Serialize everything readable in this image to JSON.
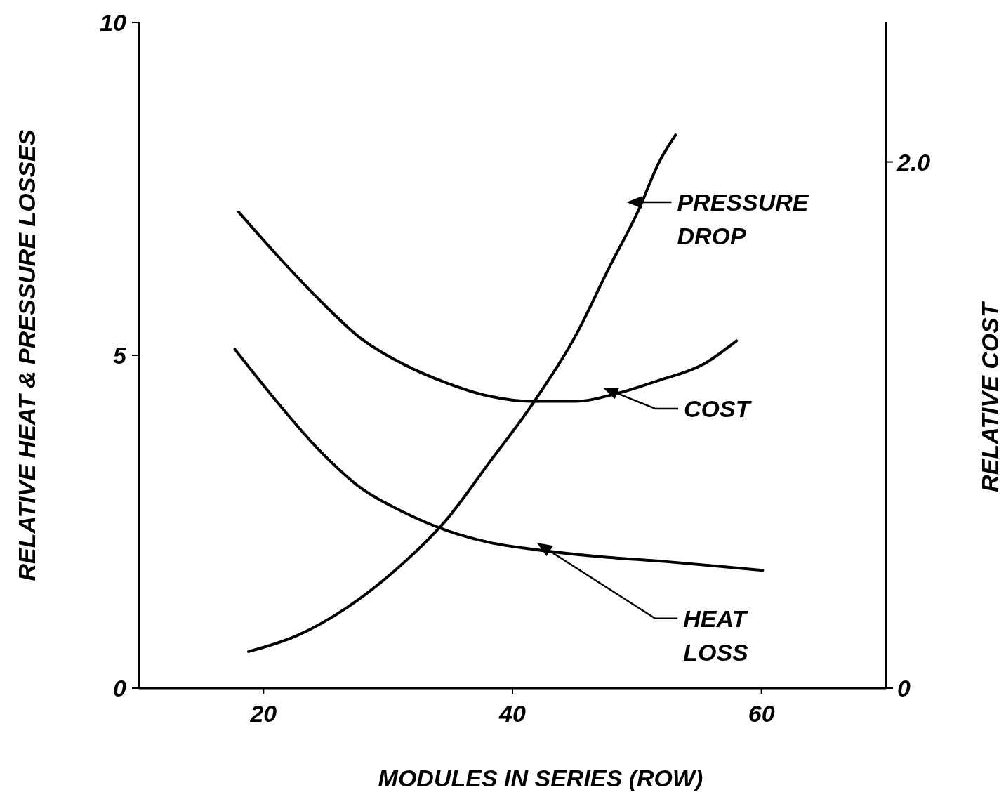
{
  "chart_data": {
    "type": "line",
    "xlabel": "MODULES IN SERIES (ROW)",
    "ylabel": "RELATIVE HEAT & PRESSURE LOSSES",
    "y2label": "RELATIVE COST",
    "xlim": [
      10,
      70
    ],
    "xticks": [
      20,
      40,
      60
    ],
    "ylim": [
      0,
      10
    ],
    "yticks": [
      0,
      5,
      10
    ],
    "y2lim": [
      0,
      2.53
    ],
    "y2ticks": [
      0,
      {
        "value": 2,
        "label": "2.0"
      }
    ],
    "grid": false,
    "marker": "none",
    "line_style": "solid",
    "series": [
      {
        "color": "#000000",
        "x": [
          18.8,
          22.7,
          26.7,
          30.7,
          34.7,
          38.1,
          41.5,
          45.0,
          47.8,
          50.1,
          51.8,
          53.1
        ],
        "values": [
          0.55,
          0.79,
          1.21,
          1.79,
          2.53,
          3.38,
          4.24,
          5.27,
          6.33,
          7.17,
          7.91,
          8.31
        ]
      },
      {
        "color": "#000000",
        "axis": "y2",
        "x": [
          18.0,
          21.0,
          24.4,
          27.8,
          31.3,
          34.7,
          38.1,
          41.5,
          45.0,
          48.4,
          51.8,
          55.3,
          58.0
        ],
        "values": [
          1.81,
          1.65,
          1.48,
          1.33,
          1.23,
          1.16,
          1.11,
          1.09,
          1.09,
          1.12,
          1.17,
          1.23,
          1.32
        ]
      },
      {
        "color": "#000000",
        "x": [
          17.7,
          21.0,
          24.4,
          27.8,
          31.3,
          34.7,
          38.1,
          41.5,
          46.7,
          52.4,
          60.1
        ],
        "values": [
          5.09,
          4.32,
          3.59,
          3.01,
          2.64,
          2.37,
          2.19,
          2.09,
          1.98,
          1.9,
          1.77
        ]
      }
    ],
    "annotations": [
      {
        "text": "PRESSURE DROP",
        "x": 50.4,
        "y": 7.3
      },
      {
        "text": "COST",
        "x": 48.4,
        "y": 4.43
      },
      {
        "text": "HEAT LOSS",
        "x": 43.0,
        "y": 2.06
      }
    ]
  }
}
